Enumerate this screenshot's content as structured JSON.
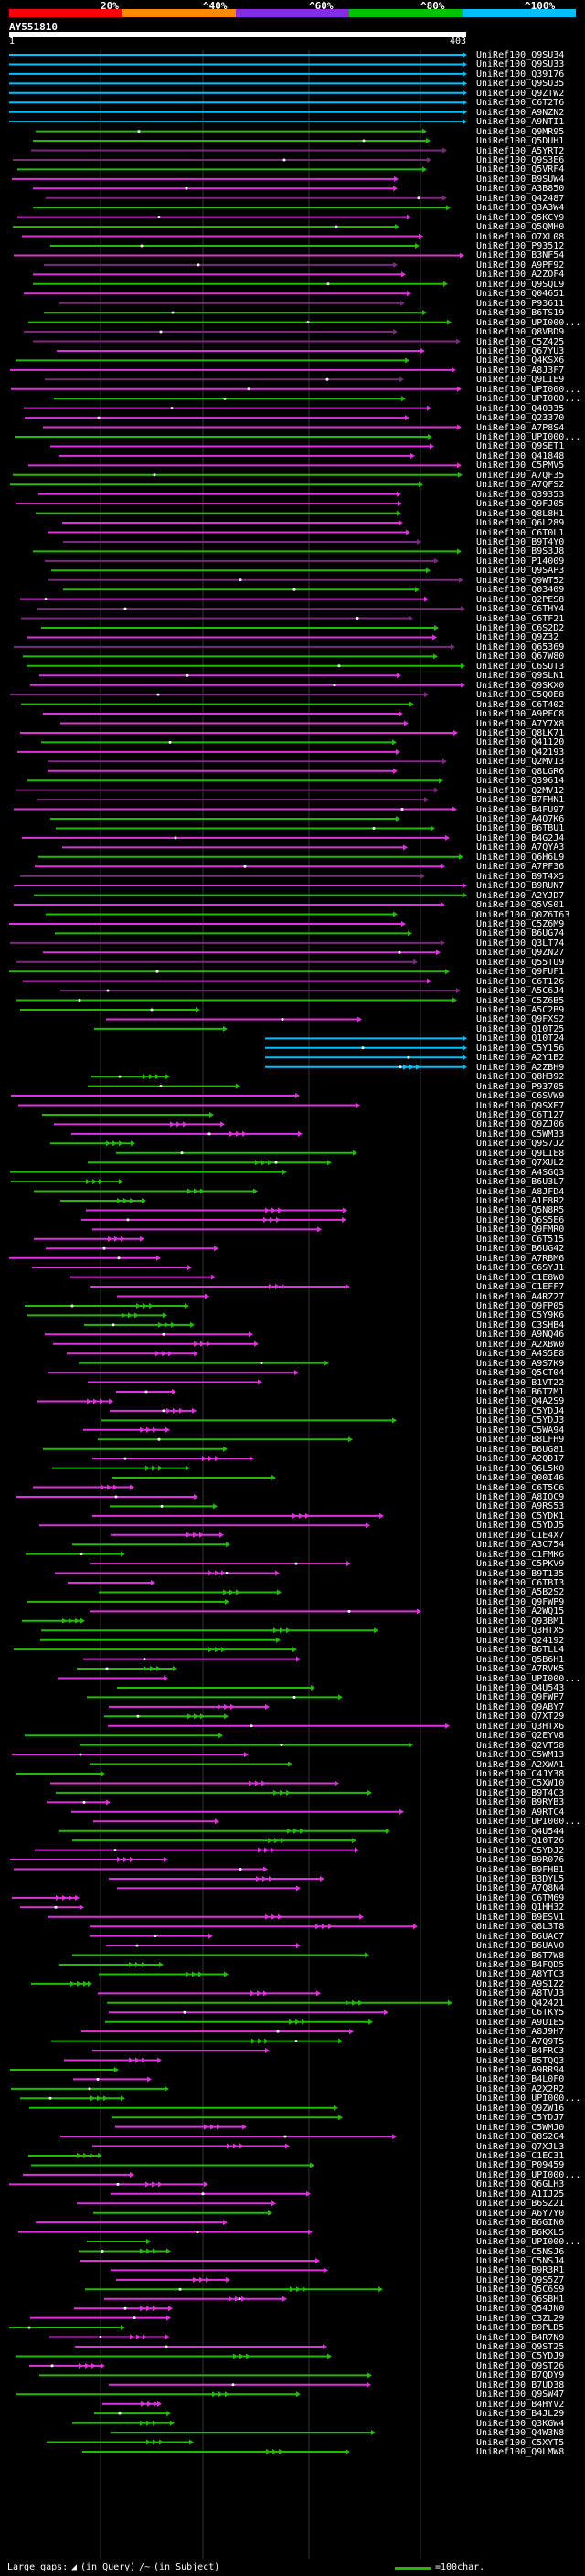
{
  "legend": {
    "percent_labels": [
      "20%",
      "^40%",
      "^60%",
      "^80%",
      "^100%"
    ],
    "colors": [
      "#ff0000",
      "#ff8c00",
      "#8a2be2",
      "#00c000",
      "#00bfff"
    ]
  },
  "query": {
    "id": "AY551810",
    "start": "1",
    "end": "403"
  },
  "colors": {
    "cyan": "#00bfff",
    "green": "#22bb00",
    "magenta": "#dd33dd",
    "purple": "#7a2a7a",
    "background": "#000000"
  },
  "hits": [
    "UniRef100_Q9SU34",
    "UniRef100_Q9SU33",
    "UniRef100_Q39176",
    "UniRef100_Q9SU35",
    "UniRef100_Q9ZTW2",
    "UniRef100_C6T2T6",
    "UniRef100_A9NZN2",
    "UniRef100_A9NTI1",
    "UniRef100_Q9MR95",
    "UniRef100_Q5DUH1",
    "UniRef100_A5YRT2",
    "UniRef100_Q9S3E6",
    "UniRef100_Q5VRF4",
    "UniRef100_B9SUW4",
    "UniRef100_A3B850",
    "UniRef100_Q42487",
    "UniRef100_Q3A3W4",
    "UniRef100_Q5KCY9",
    "UniRef100_Q5QMH0",
    "UniRef100_O7XL08",
    "UniRef100_P93512",
    "UniRef100_B3NF54",
    "UniRef100_A9PF92",
    "UniRef100_A2ZOF4",
    "UniRef100_Q9SQL9",
    "UniRef100_Q04651",
    "UniRef100_P93611",
    "UniRef100_B6TS19",
    "UniRef100_UPI000...",
    "UniRef100_Q8VBD9",
    "UniRef100_C5Z425",
    "UniRef100_Q67YU3",
    "UniRef100_Q4KSX6",
    "UniRef100_A8J3F7",
    "UniRef100_Q9LIE9",
    "UniRef100_UPI000...",
    "UniRef100_UPI000...",
    "UniRef100_Q40335",
    "UniRef100_Q23370",
    "UniRef100_A7P8S4",
    "UniRef100_UPI000...",
    "UniRef100_Q9SET1",
    "UniRef100_Q41848",
    "UniRef100_C5PMV5",
    "UniRef100_A7QF35",
    "UniRef100_A7QFS2",
    "UniRef100_Q39353",
    "UniRef100_Q9FJ05",
    "UniRef100_Q8L8H1",
    "UniRef100_Q6L289",
    "UniRef100_C6T0L1",
    "UniRef100_B9T4Y0",
    "UniRef100_B9S3J8",
    "UniRef100_P14009",
    "UniRef100_Q9SAP3",
    "UniRef100_Q9WT52",
    "UniRef100_Q03409",
    "UniRef100_Q2PES8",
    "UniRef100_C6THY4",
    "UniRef100_C6TF21",
    "UniRef100_C6S2D2",
    "UniRef100_Q9Z32",
    "UniRef100_Q65369",
    "UniRef100_Q67W80",
    "UniRef100_C6SUT3",
    "UniRef100_Q9SLN1",
    "UniRef100_Q9SKX0",
    "UniRef100_C5Q0E8",
    "UniRef100_C6T402",
    "UniRef100_A9PFC8",
    "UniRef100_A7Y7X8",
    "UniRef100_Q8LK71",
    "UniRef100_Q41120",
    "UniRef100_Q42193",
    "UniRef100_Q2MV13",
    "UniRef100_Q8LGR6",
    "UniRef100_Q39614",
    "UniRef100_Q2MV12",
    "UniRef100_B7FHN1",
    "UniRef100_B4FU97",
    "UniRef100_A4Q7K6",
    "UniRef100_B6TBU1",
    "UniRef100_B4G2J4",
    "UniRef100_A7QYA3",
    "UniRef100_Q6H6L9",
    "UniRef100_A7PF36",
    "UniRef100_B9T4X5",
    "UniRef100_B9RUN7",
    "UniRef100_A2YJD7",
    "UniRef100_Q5VS01",
    "UniRef100_Q0Z6T63",
    "UniRef100_C5Z6M9",
    "UniRef100_B6UG74",
    "UniRef100_Q3LT74",
    "UniRef100_Q9ZN27",
    "UniRef100_Q55TU9",
    "UniRef100_Q9FUF1",
    "UniRef100_C6T126",
    "UniRef100_A5C6J4",
    "UniRef100_C5Z6B5",
    "UniRef100_A5C2B9",
    "UniRef100_Q9FXS2",
    "UniRef100_Q10T25",
    "UniRef100_Q10T24",
    "UniRef100_C5Y156",
    "UniRef100_A2Y1B2",
    "UniRef100_A2ZBH9",
    "UniRef100_Q8H392",
    "UniRef100_P93705",
    "UniRef100_C6SVW9",
    "UniRef100_Q9SXE7",
    "UniRef100_C6T127",
    "UniRef100_Q9ZJ06",
    "UniRef100_C5WM33",
    "UniRef100_Q9S7J2",
    "UniRef100_Q9LIE8",
    "UniRef100_Q7XUL2",
    "UniRef100_A4SGQ3",
    "UniRef100_B6U3L7",
    "UniRef100_A8JFD4",
    "UniRef100_A1E8R2",
    "UniRef100_Q5N8R5",
    "UniRef100_Q6S5E6",
    "UniRef100_Q9FMR0",
    "UniRef100_C6T515",
    "UniRef100_B6UG42",
    "UniRef100_A7RBM6",
    "UniRef100_C6SYJ1",
    "UniRef100_C1E8W0",
    "UniRef100_C1EFF7",
    "UniRef100_A4RZ27",
    "UniRef100_Q9FP05",
    "UniRef100_C5Y9K6",
    "UniRef100_C3SHB4",
    "UniRef100_A9NQ46",
    "UniRef100_A2XBW0",
    "UniRef100_A4S5E8",
    "UniRef100_A9S7K9",
    "UniRef100_Q5CT04",
    "UniRef100_B1VT22",
    "UniRef100_B6T7M1",
    "UniRef100_Q4A2S9",
    "UniRef100_C5YDJ4",
    "UniRef100_C5YDJ3",
    "UniRef100_C5WA94",
    "UniRef100_B8LFH9",
    "UniRef100_B6UG81",
    "UniRef100_A2QD17",
    "UniRef100_Q6L5K0",
    "UniRef100_Q00I46",
    "UniRef100_C6T5C6",
    "UniRef100_A8IQC9",
    "UniRef100_A9RS53",
    "UniRef100_C5YDK1",
    "UniRef100_C5YDJ5",
    "UniRef100_C1E4X7",
    "UniRef100_A3C754",
    "UniRef100_C1FMK6",
    "UniRef100_C5PKV9",
    "UniRef100_B9T135",
    "UniRef100_C6TBI3",
    "UniRef100_A5B2S2",
    "UniRef100_Q9FWP9",
    "UniRef100_A2WQ15",
    "UniRef100_Q93BM1",
    "UniRef100_Q3HTX5",
    "UniRef100_Q24192",
    "UniRef100_B6TLL4",
    "UniRef100_Q5B6H1",
    "UniRef100_A7RVK5",
    "UniRef100_UPI000...",
    "UniRef100_Q4U543",
    "UniRef100_Q9FWP7",
    "UniRef100_Q9ABY7",
    "UniRef100_Q7XT29",
    "UniRef100_Q3HTX6",
    "UniRef100_Q2EYV8",
    "UniRef100_Q2VT58",
    "UniRef100_C5WM13",
    "UniRef100_A2XWA1",
    "UniRef100_C4JY38",
    "UniRef100_C5XW10",
    "UniRef100_B9T4C3",
    "UniRef100_B9RYB3",
    "UniRef100_A9RTC4",
    "UniRef100_UPI000...",
    "UniRef100_Q4U544",
    "UniRef100_Q10T26",
    "UniRef100_C5YDJ2",
    "UniRef100_B9R076",
    "UniRef100_B9FHB1",
    "UniRef100_B3DYL5",
    "UniRef100_A7Q8N4",
    "UniRef100_C6TM69",
    "UniRef100_Q1HH32",
    "UniRef100_B9ESV1",
    "UniRef100_Q8L3T8",
    "UniRef100_B6UAC7",
    "UniRef100_B6UAV0",
    "UniRef100_B6T7W8",
    "UniRef100_B4FQD5",
    "UniRef100_A8YTC3",
    "UniRef100_A9S1Z2",
    "UniRef100_A8TVJ3",
    "UniRef100_Q42421",
    "UniRef100_C6TKY5",
    "UniRef100_A9U1E5",
    "UniRef100_A8J9H7",
    "UniRef100_A7Q9T5",
    "UniRef100_B4FRC3",
    "UniRef100_B5TQQ3",
    "UniRef100_A9RR94",
    "UniRef100_B4L0F0",
    "UniRef100_A2X2R2",
    "UniRef100_UPI000...",
    "UniRef100_Q9ZW16",
    "UniRef100_C5YDJ7",
    "UniRef100_C5WMJ0",
    "UniRef100_Q8S2G4",
    "UniRef100_Q7XJL3",
    "UniRef100_C1EC31",
    "UniRef100_P09459",
    "UniRef100_UPI000...",
    "UniRef100_Q6GLH3",
    "UniRef100_A1IJ25",
    "UniRef100_B6SZ21",
    "UniRef100_A6Y7Y0",
    "UniRef100_B6GIN0",
    "UniRef100_B6KXL5",
    "UniRef100_UPI000...",
    "UniRef100_C5NSJ6",
    "UniRef100_C5NSJ4",
    "UniRef100_B9R3R1",
    "UniRef100_Q9S5Z7",
    "UniRef100_Q5C6S9",
    "UniRef100_Q6SBH1",
    "UniRef100_Q54JN0",
    "UniRef100_C3ZL29",
    "UniRef100_B9PLD5",
    "UniRef100_B4R7N9",
    "UniRef100_Q9ST25",
    "UniRef100_C5YDJ9",
    "UniRef100_Q9ST26",
    "UniRef100_B7QDY9",
    "UniRef100_B7UD38",
    "UniRef100_Q9SW47",
    "UniRef100_B4HYV2",
    "UniRef100_B4JL29",
    "UniRef100_Q3KGW4",
    "UniRef100_Q4W3N8",
    "UniRef100_C5XYT5",
    "UniRef100_Q9LMW8"
  ],
  "footer": {
    "large_gaps_label": "Large gaps:",
    "query_gap_label": "(in Query)",
    "subject_gap_label": "(in Subject)",
    "scale_label": "=100char."
  }
}
